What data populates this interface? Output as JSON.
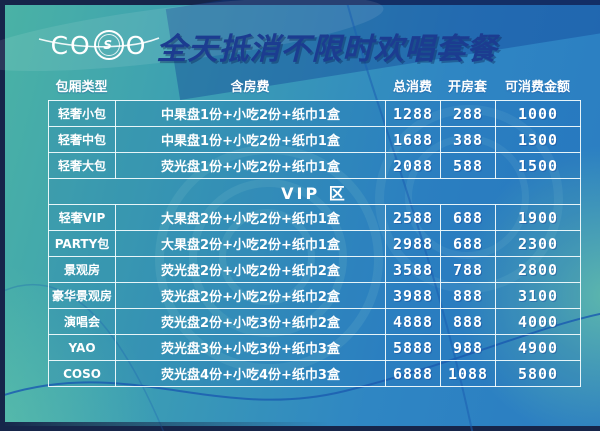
{
  "logo": {
    "c": "C",
    "o1": "O",
    "symbol": "S",
    "o2": "O"
  },
  "title": "全天抵消不限时欢唱套餐",
  "table": {
    "columns": [
      "包厢类型",
      "含房费",
      "总消费",
      "开房套",
      "可消费金额"
    ],
    "rows": [
      {
        "room": "轻奢小包",
        "includes": "中果盘1份+小吃2份+纸巾1盒",
        "total": "1288",
        "open": "288",
        "spend": "1000"
      },
      {
        "room": "轻奢中包",
        "includes": "中果盘1份+小吃2份+纸巾1盒",
        "total": "1688",
        "open": "388",
        "spend": "1300"
      },
      {
        "room": "轻奢大包",
        "includes": "荧光盘1份+小吃2份+纸巾1盒",
        "total": "2088",
        "open": "588",
        "spend": "1500"
      },
      {
        "section": "VIP 区"
      },
      {
        "room": "轻奢VIP",
        "includes": "大果盘2份+小吃2份+纸巾1盒",
        "total": "2588",
        "open": "688",
        "spend": "1900"
      },
      {
        "room": "PARTY包",
        "includes": "大果盘2份+小吃2份+纸巾1盒",
        "total": "2988",
        "open": "688",
        "spend": "2300"
      },
      {
        "room": "景观房",
        "includes": "荧光盘2份+小吃2份+纸巾2盒",
        "total": "3588",
        "open": "788",
        "spend": "2800"
      },
      {
        "room": "豪华景观房",
        "includes": "荧光盘2份+小吃2份+纸巾2盒",
        "total": "3988",
        "open": "888",
        "spend": "3100"
      },
      {
        "room": "演唱会",
        "includes": "荧光盘2份+小吃3份+纸巾2盒",
        "total": "4888",
        "open": "888",
        "spend": "4000"
      },
      {
        "room": "YAO",
        "includes": "荧光盘3份+小吃3份+纸巾3盒",
        "total": "5888",
        "open": "988",
        "spend": "4900"
      },
      {
        "room": "COSO",
        "includes": "荧光盘4份+小吃4份+纸巾3盒",
        "total": "6888",
        "open": "1088",
        "spend": "5800"
      }
    ]
  },
  "colors": {
    "title_navy": "#1c3c90",
    "teal": "#4ab2a5",
    "blue": "#2a7cc2",
    "border_white": "#f0fafc",
    "curve_navy": "#1c5eb0"
  }
}
